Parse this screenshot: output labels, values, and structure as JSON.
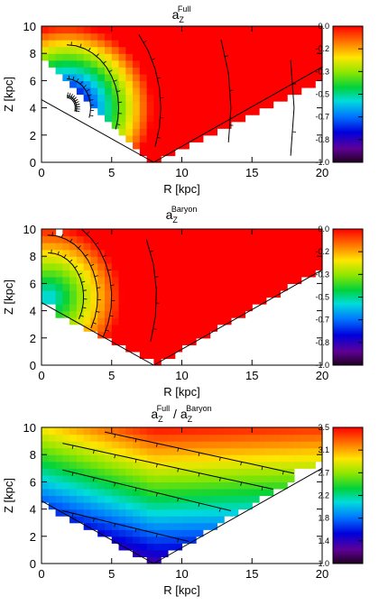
{
  "chart_data": [
    {
      "type": "heatmap",
      "title": {
        "base": "a",
        "sub": "Z",
        "sup": "Full"
      },
      "xlabel": "R  [kpc]",
      "ylabel": "Z  [kpc]",
      "xlim": [
        0,
        20
      ],
      "ylim": [
        0,
        10
      ],
      "xticks": [
        "0",
        "5",
        "10",
        "15",
        "20"
      ],
      "yticks": [
        "0",
        "2",
        "4",
        "6",
        "8",
        "10"
      ],
      "colorbar": {
        "min": -1.0,
        "max": 0.0,
        "ticks": [
          "0.0",
          "-0.2",
          "-0.3",
          "-0.5",
          "-0.7",
          "-0.8",
          "-1.0"
        ]
      },
      "field": {
        "kind": "full",
        "center": [
          1.8,
          4.0
        ],
        "peak_value": -1.0
      },
      "contours_through_r": [
        1.5,
        2.5,
        3.5,
        5.5,
        8.5,
        13.5,
        18
      ]
    },
    {
      "type": "heatmap",
      "title": {
        "base": "a",
        "sub": "Z",
        "sup": "Baryon"
      },
      "xlabel": "R  [kpc]",
      "ylabel": "Z  [kpc]",
      "xlim": [
        0,
        20
      ],
      "ylim": [
        0,
        10
      ],
      "xticks": [
        "0",
        "5",
        "10",
        "15",
        "20"
      ],
      "yticks": [
        "0",
        "2",
        "4",
        "6",
        "8",
        "10"
      ],
      "colorbar": {
        "min": -1.0,
        "max": 0.0,
        "ticks": [
          "0.0",
          "-0.2",
          "-0.3",
          "-0.5",
          "-0.7",
          "-0.8",
          "-1.0"
        ]
      },
      "field": {
        "kind": "baryon",
        "center": [
          0.5,
          5.0
        ],
        "peak_value": -0.6
      },
      "contours_through_r": [
        3,
        4,
        5,
        8.2
      ]
    },
    {
      "type": "heatmap",
      "title": {
        "base": "a",
        "sub": "Z",
        "sup": "Full",
        "sep": " / ",
        "base2": "a",
        "sub2": "Z",
        "sup2": "Baryon"
      },
      "xlabel": "R  [kpc]",
      "ylabel": "Z  [kpc]",
      "xlim": [
        0,
        20
      ],
      "ylim": [
        0,
        10
      ],
      "xticks": [
        "0",
        "5",
        "10",
        "15",
        "20"
      ],
      "yticks": [
        "0",
        "2",
        "4",
        "6",
        "8",
        "10"
      ],
      "colorbar": {
        "min": 1.0,
        "max": 3.5,
        "ticks": [
          "3.5",
          "3.1",
          "2.7",
          "2.2",
          "1.8",
          "1.4",
          "1.0"
        ]
      },
      "field": {
        "kind": "ratio",
        "min": 1.0,
        "max": 3.5
      },
      "contours_at_r3": [
        3.5,
        6.5,
        8.5,
        10
      ]
    }
  ]
}
